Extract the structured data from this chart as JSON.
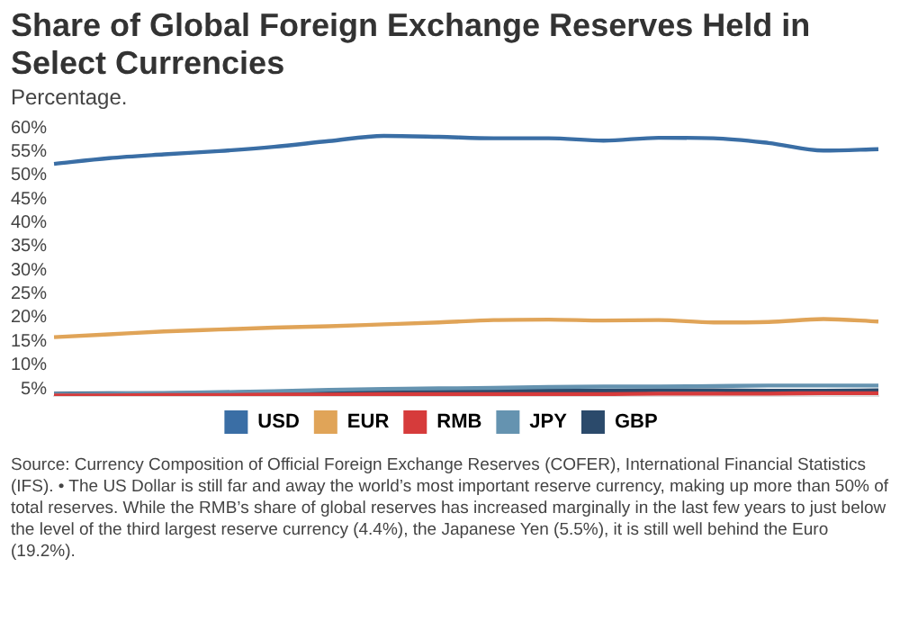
{
  "chart_data": {
    "type": "line",
    "title": "Share of Global Foreign Exchange Reserves Held in Select Currencies",
    "subtitle": "Percentage.",
    "annotations": [
      "Source: Currency Composition of Official Foreign Exchange Reserves (COFER), International Financial Statistics (IFS). • The US Dollar is still far and away the world’s most important reserve currency, making up more than 50% of total reserves. While the RMB’s share of global reserves has increased marginally in the last few years to just below the level of the third largest reserve currency (4.4%), the Japanese Yen (5.5%), it is still well behind the Euro (19.2%)."
    ],
    "categories": [
      null,
      null,
      null,
      null,
      null,
      null,
      null,
      null,
      null,
      null,
      null,
      null,
      null,
      null,
      null,
      null
    ],
    "series": [
      {
        "name": "USD",
        "color": "#3a6ea5",
        "values": [
          52.4,
          53.6,
          54.4,
          55.1,
          56.0,
          57.2,
          58.3,
          58.1,
          57.8,
          57.8,
          57.3,
          57.9,
          57.8,
          56.8,
          55.2,
          55.5
        ]
      },
      {
        "name": "EUR",
        "color": "#e0a458",
        "values": [
          15.9,
          16.5,
          17.1,
          17.5,
          17.9,
          18.2,
          18.6,
          19.0,
          19.5,
          19.6,
          19.4,
          19.5,
          19.0,
          19.1,
          19.7,
          19.2
        ]
      },
      {
        "name": "RMB",
        "color": "#d63b3b",
        "values": [
          3.6,
          3.6,
          3.7,
          3.7,
          3.8,
          3.8,
          3.9,
          3.9,
          3.9,
          3.9,
          3.9,
          4.0,
          4.0,
          4.0,
          4.1,
          4.1
        ]
      },
      {
        "name": "JPY",
        "color": "#6593b0",
        "values": [
          3.9,
          4.0,
          4.1,
          4.3,
          4.5,
          4.8,
          5.0,
          5.1,
          5.2,
          5.4,
          5.5,
          5.5,
          5.6,
          5.7,
          5.7,
          5.7
        ]
      },
      {
        "name": "GBP",
        "color": "#2b4a6b",
        "values": [
          4.0,
          4.1,
          4.1,
          4.2,
          4.3,
          4.4,
          4.5,
          4.6,
          4.6,
          4.6,
          4.6,
          4.7,
          4.7,
          4.6,
          4.6,
          4.7
        ]
      }
    ],
    "ylim": [
      3.5,
      60
    ],
    "yticks": [
      {
        "value": 5,
        "label": "5%"
      },
      {
        "value": 10,
        "label": "10%"
      },
      {
        "value": 15,
        "label": "15%"
      },
      {
        "value": 20,
        "label": "20%"
      },
      {
        "value": 25,
        "label": "25%"
      },
      {
        "value": 30,
        "label": "30%"
      },
      {
        "value": 35,
        "label": "35%"
      },
      {
        "value": 40,
        "label": "40%"
      },
      {
        "value": 45,
        "label": "45%"
      },
      {
        "value": 50,
        "label": "50%"
      },
      {
        "value": 55,
        "label": "55%"
      },
      {
        "value": 60,
        "label": "60%"
      }
    ],
    "tick_labels": "y",
    "grid": false,
    "legend": "bottom",
    "marker": "none",
    "line_style": "solid"
  }
}
